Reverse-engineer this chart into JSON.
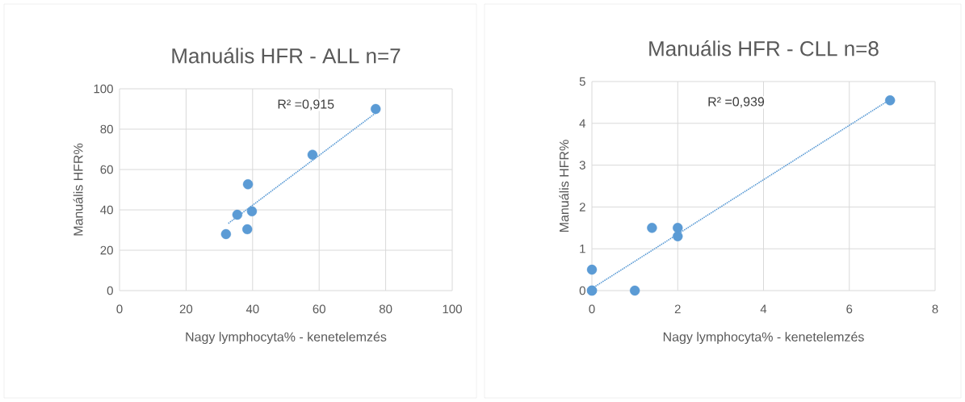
{
  "chart_data": [
    {
      "type": "scatter",
      "title": "Manuális HFR - ALL n=7",
      "xlabel": "Nagy lymphocyta% - kenetelemzés",
      "ylabel": "Manuális HFR%",
      "xlim": [
        0,
        100
      ],
      "xticks": [
        0,
        20,
        40,
        60,
        80,
        100
      ],
      "ylim": [
        0,
        100
      ],
      "yticks": [
        0,
        20,
        40,
        60,
        80,
        100
      ],
      "grid": true,
      "annotations": [
        "R² =0,915"
      ],
      "series": [
        {
          "color": "#5b9bd5",
          "marker": "circle",
          "x": [
            32,
            35.4,
            38.6,
            39.8,
            38.4,
            58,
            77
          ],
          "values": [
            28,
            37.6,
            52.7,
            39.3,
            30.4,
            67.3,
            90
          ]
        },
        {
          "type": "line",
          "color": "#5b9bd5",
          "marker": "none",
          "line_style": "dotted",
          "x": [
            32.7,
            77
          ],
          "values": [
            33.3,
            88
          ]
        }
      ]
    },
    {
      "type": "scatter",
      "title": "Manuális HFR - CLL n=8",
      "xlabel": "Nagy lymphocyta% - kenetelemzés",
      "ylabel": "Manuális HFR%",
      "xlim": [
        0,
        8
      ],
      "xticks": [
        0,
        2,
        4,
        6,
        8
      ],
      "ylim": [
        0,
        5
      ],
      "yticks": [
        0,
        1,
        2,
        3,
        4,
        5
      ],
      "grid": true,
      "annotations": [
        "R² =0,939"
      ],
      "series": [
        {
          "color": "#5b9bd5",
          "marker": "circle",
          "x": [
            0,
            0,
            0,
            1,
            1.4,
            2,
            2,
            6.95
          ],
          "values": [
            0,
            0,
            0.5,
            0,
            1.5,
            1.5,
            1.3,
            4.55
          ]
        },
        {
          "type": "line",
          "color": "#5b9bd5",
          "marker": "none",
          "line_style": "dotted",
          "x": [
            0,
            6.95
          ],
          "values": [
            0.05,
            4.57
          ]
        }
      ]
    }
  ]
}
